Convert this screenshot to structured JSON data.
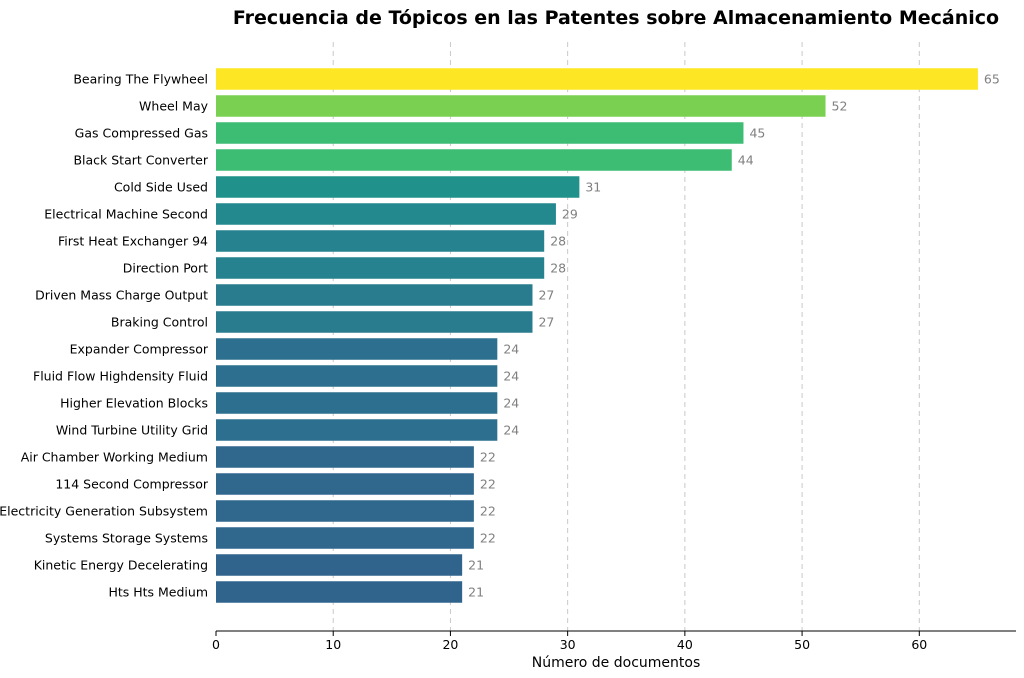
{
  "chart_data": {
    "type": "bar",
    "orientation": "horizontal",
    "title": "Frecuencia de Tópicos en las Patentes sobre Almacenamiento Mecánico",
    "xlabel": "Número de documentos",
    "ylabel": "",
    "xlim": [
      0,
      68.25
    ],
    "xticks": [
      0,
      10,
      20,
      30,
      40,
      50,
      60
    ],
    "grid": "vertical dashed",
    "categories": [
      "Bearing The Flywheel",
      "Wheel May",
      "Gas Compressed Gas",
      "Black Start Converter",
      "Cold Side Used",
      "Electrical Machine Second",
      "First Heat Exchanger 94",
      "Direction Port",
      "Driven Mass Charge Output",
      "Braking Control",
      "Expander Compressor",
      "Fluid Flow Highdensity Fluid",
      "Higher Elevation Blocks",
      "Wind Turbine Utility Grid",
      "Air Chamber Working Medium",
      "114 Second Compressor",
      "Electricity Generation Subsystem",
      "Systems Storage Systems",
      "Kinetic Energy Decelerating",
      "Hts Hts Medium"
    ],
    "values": [
      65,
      52,
      45,
      44,
      31,
      29,
      28,
      28,
      27,
      27,
      24,
      24,
      24,
      24,
      22,
      22,
      22,
      22,
      21,
      21
    ],
    "colors": [
      "#fde725",
      "#7ad151",
      "#3dbc74",
      "#3dbc74",
      "#21918c",
      "#23898e",
      "#26828e",
      "#26828e",
      "#297b8e",
      "#297b8e",
      "#2c6f8e",
      "#2c6f8e",
      "#2c6f8e",
      "#2c6f8e",
      "#30678d",
      "#30678d",
      "#30678d",
      "#30678d",
      "#31648d",
      "#31648d"
    ]
  }
}
